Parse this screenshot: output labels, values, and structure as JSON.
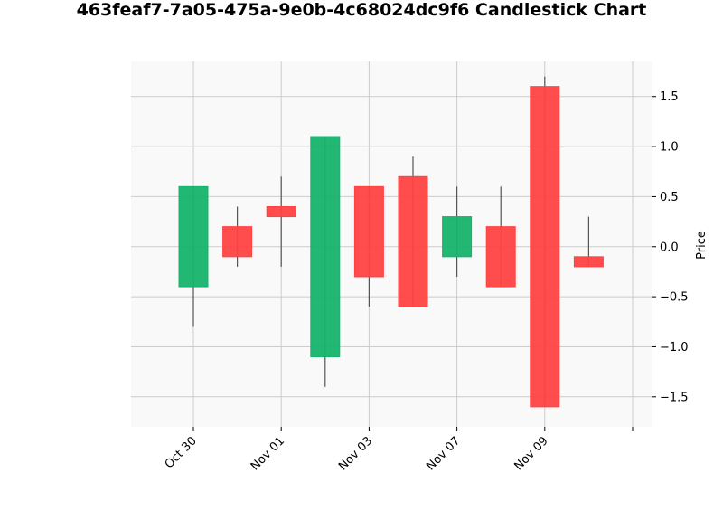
{
  "chart_data": {
    "type": "candlestick",
    "title": "463feaf7-7a05-475a-9e0b-4c68024dc9f6 Candlestick Chart",
    "ylabel": "Price",
    "xlabel": "",
    "ylim": [
      -1.8,
      1.85
    ],
    "yticks": [
      -1.5,
      -1.0,
      -0.5,
      0.0,
      0.5,
      1.0,
      1.5
    ],
    "ytick_labels": [
      "−1.5",
      "−1.0",
      "−0.5",
      "0.0",
      "0.5",
      "1.0",
      "1.5"
    ],
    "xtick_labels": [
      "Oct 30",
      "Nov 01",
      "Nov 03",
      "Nov 07",
      "Nov 09",
      ""
    ],
    "xtick_index": [
      0,
      2,
      4,
      6,
      8,
      10
    ],
    "grid": true,
    "up_color": "#16b36b",
    "down_color": "#ff4242",
    "wick_color": "#555555",
    "candles": [
      {
        "open": -0.4,
        "high": 0.6,
        "low": -0.8,
        "close": 0.6
      },
      {
        "open": 0.2,
        "high": 0.4,
        "low": -0.2,
        "close": -0.1
      },
      {
        "open": 0.4,
        "high": 0.7,
        "low": -0.2,
        "close": 0.3
      },
      {
        "open": -1.1,
        "high": 1.1,
        "low": -1.4,
        "close": 1.1
      },
      {
        "open": 0.6,
        "high": 0.6,
        "low": -0.6,
        "close": -0.3
      },
      {
        "open": 0.7,
        "high": 0.9,
        "low": -0.6,
        "close": -0.6
      },
      {
        "open": -0.1,
        "high": 0.6,
        "low": -0.3,
        "close": 0.3
      },
      {
        "open": 0.2,
        "high": 0.6,
        "low": -0.4,
        "close": -0.4
      },
      {
        "open": 1.6,
        "high": 1.7,
        "low": -1.6,
        "close": -1.6
      },
      {
        "open": -0.1,
        "high": 0.3,
        "low": -0.2,
        "close": -0.2
      }
    ]
  }
}
